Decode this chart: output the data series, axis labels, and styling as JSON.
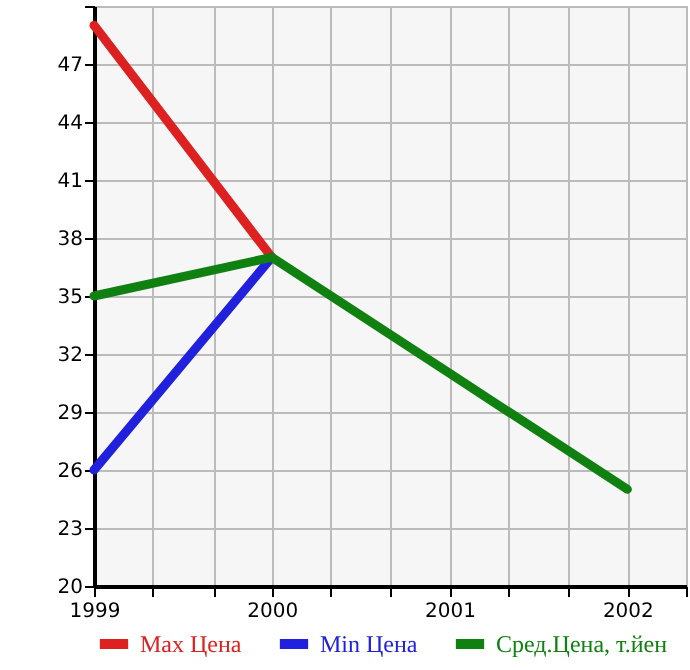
{
  "chart_data": {
    "type": "line",
    "x": [
      1999,
      2000,
      2001,
      2002
    ],
    "series": [
      {
        "name": "Max Цена",
        "color": "#dd2020",
        "values": [
          49,
          37,
          null,
          null
        ]
      },
      {
        "name": "Min Цена",
        "color": "#2020dd",
        "values": [
          26,
          37,
          null,
          null
        ]
      },
      {
        "name": "Сред.Цена, т.йен",
        "color": "#108010",
        "values": [
          35,
          37,
          31,
          25
        ]
      }
    ],
    "xlim": [
      1999,
      2002.33
    ],
    "xticks": [
      1999,
      {
        "value": 1999.33,
        "label": null
      },
      {
        "value": 1999.67,
        "label": null
      },
      2000,
      {
        "value": 2000.33,
        "label": null
      },
      {
        "value": 2000.67,
        "label": null
      },
      2001,
      {
        "value": 2001.33,
        "label": null
      },
      {
        "value": 2001.67,
        "label": null
      },
      2002,
      {
        "value": 2002.33,
        "label": null
      }
    ],
    "ylim": [
      20,
      50
    ],
    "yticks": [
      20,
      23,
      26,
      29,
      32,
      35,
      38,
      41,
      44,
      47,
      {
        "value": 50,
        "label": null
      }
    ],
    "grid": true,
    "legend": "bottom",
    "line_style": "solid"
  }
}
